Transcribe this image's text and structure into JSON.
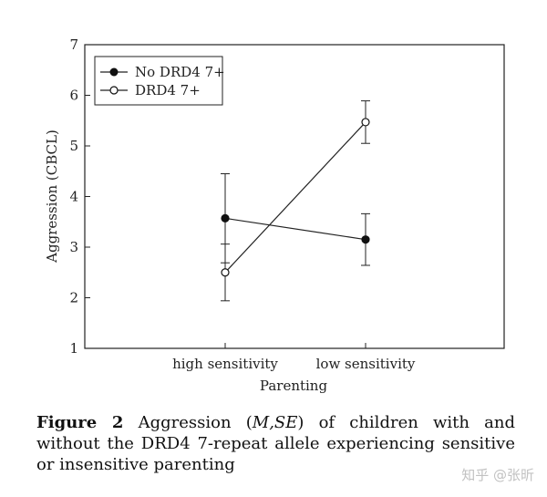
{
  "chart_data": {
    "type": "line",
    "title": "",
    "xlabel": "Parenting",
    "ylabel": "Aggression (CBCL)",
    "categories": [
      "high sensitivity",
      "low sensitivity"
    ],
    "ylim": [
      1,
      7
    ],
    "yticks": [
      1,
      2,
      3,
      4,
      5,
      6,
      7
    ],
    "legend_position": "top-left",
    "series": [
      {
        "name": "No DRD4 7+",
        "marker": "filled-circle",
        "values": [
          3.57,
          3.15
        ],
        "error": [
          0.88,
          0.51
        ]
      },
      {
        "name": "DRD4 7+",
        "marker": "open-circle",
        "values": [
          2.5,
          5.47
        ],
        "error": [
          0.56,
          0.42
        ]
      }
    ]
  },
  "caption": {
    "label": "Figure 2",
    "text_before": " Aggression (",
    "stat": "M,SE",
    "text_after": ") of children with and without the DRD4 7-repeat allele experiencing sensitive or insensitive parenting"
  },
  "watermark": "知乎 @张昕"
}
